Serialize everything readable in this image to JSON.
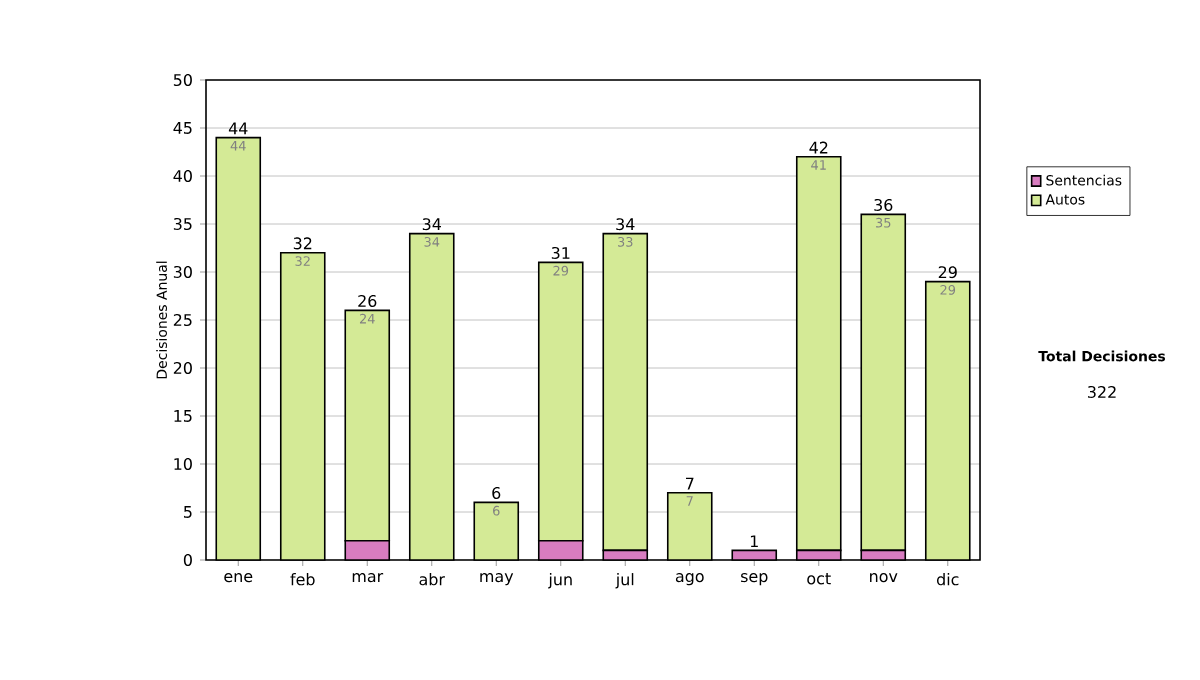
{
  "chart_data": {
    "type": "bar",
    "stacked": true,
    "categories": [
      "ene",
      "feb",
      "mar",
      "abr",
      "may",
      "jun",
      "jul",
      "ago",
      "sep",
      "oct",
      "nov",
      "dic"
    ],
    "series": [
      {
        "name": "Sentencias",
        "color": "#d87cc0",
        "values": [
          0,
          0,
          2,
          0,
          0,
          2,
          1,
          0,
          1,
          1,
          1,
          0
        ]
      },
      {
        "name": "Autos",
        "color": "#d4ea96",
        "values": [
          44,
          32,
          24,
          34,
          6,
          29,
          33,
          7,
          0,
          41,
          35,
          29
        ],
        "value_labels": [
          "44",
          "32",
          "24",
          "34",
          "6",
          "29",
          "33",
          "7",
          null,
          "41",
          "35",
          "29"
        ]
      }
    ],
    "totals": [
      "44",
      "32",
      "26",
      "34",
      "6",
      "31",
      "34",
      "7",
      "1",
      "42",
      "36",
      "29"
    ],
    "ylabel": "Decisiones Anual",
    "ylim": [
      0,
      50
    ],
    "yticks": [
      0,
      5,
      10,
      15,
      20,
      25,
      30,
      35,
      40,
      45,
      50
    ],
    "grid": "y",
    "legend": "right",
    "annotations": [
      "Total Decisiones",
      "322"
    ]
  }
}
